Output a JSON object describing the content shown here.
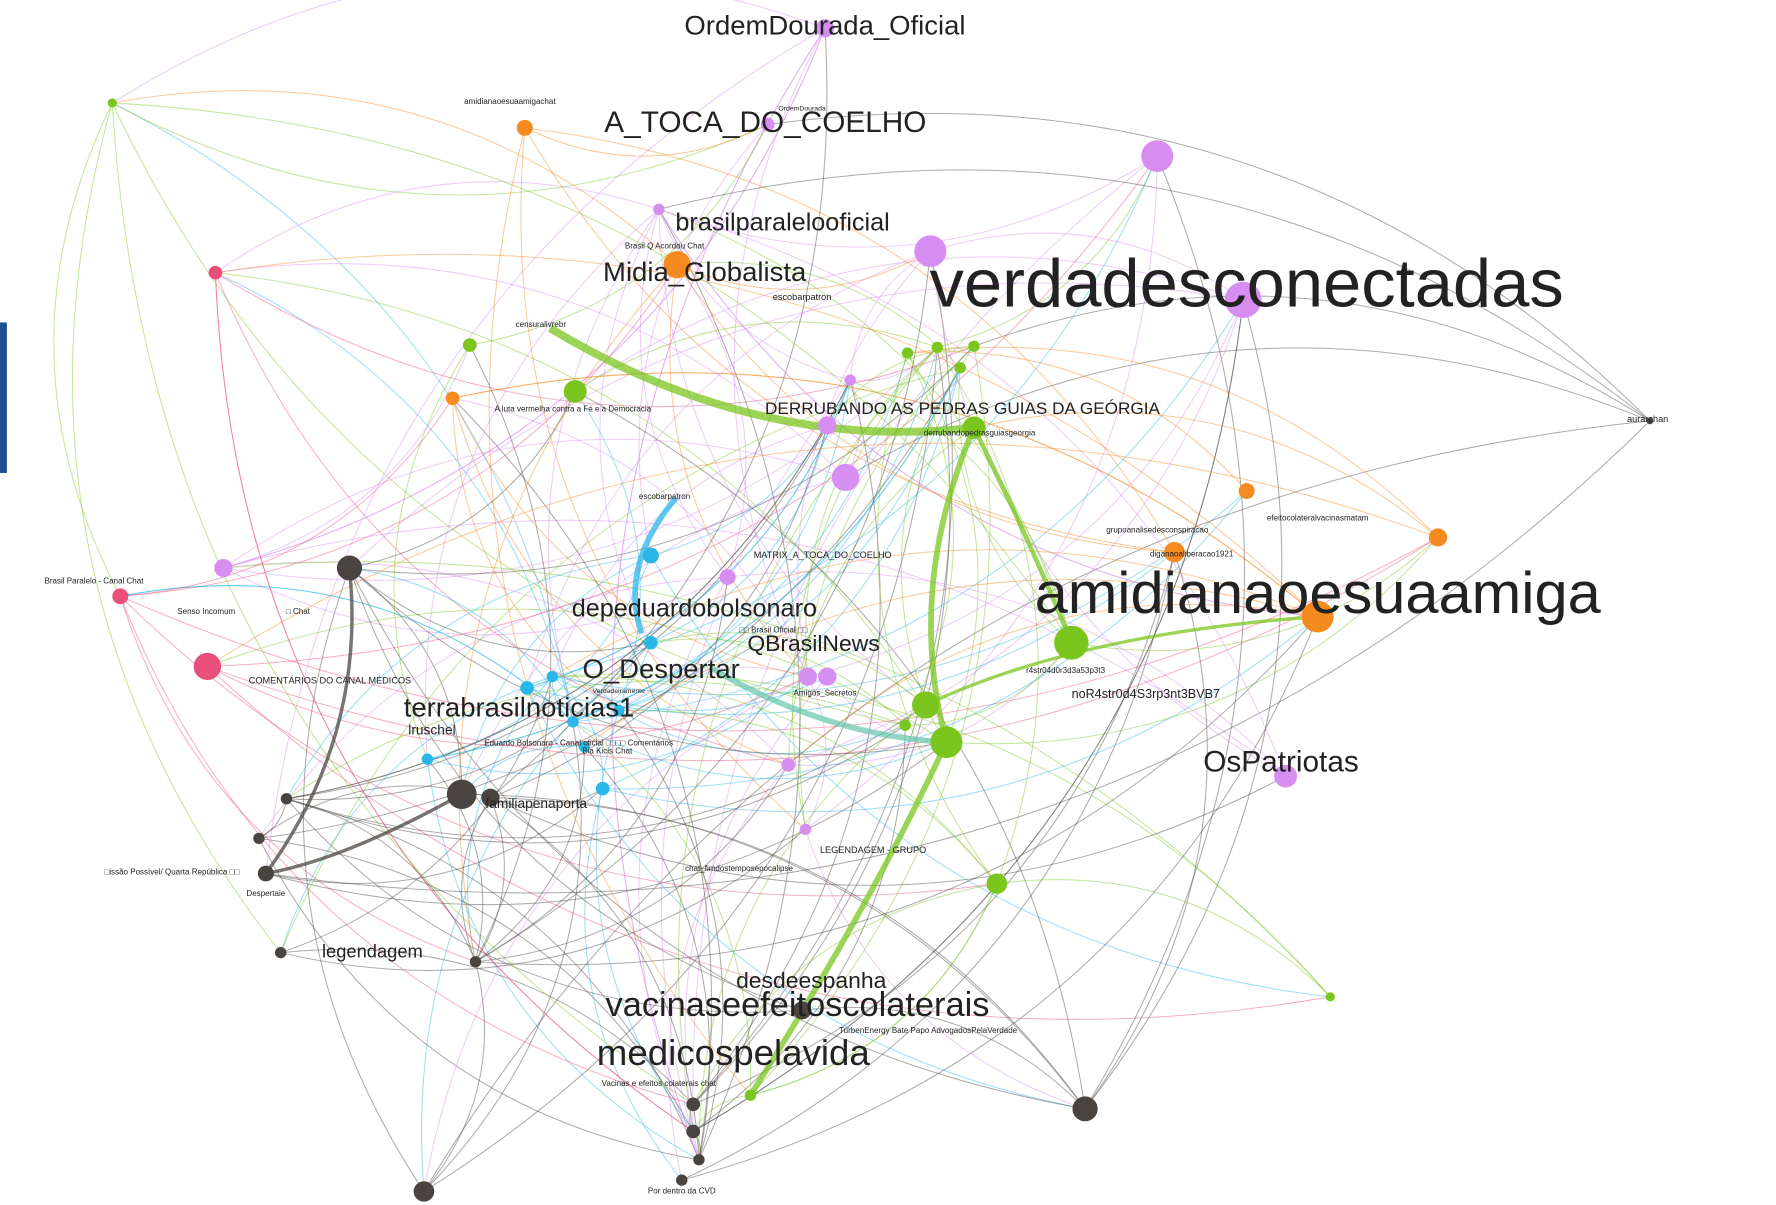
{
  "nodes": [
    {
      "label": "OrdemDourada_Oficial"
    },
    {
      "label": "amidianaoesuaamigachat"
    },
    {
      "label": "OrdemDourada"
    },
    {
      "label": "A_TOCA_DO_COELHO"
    },
    {
      "label": "brasilparalelooficial"
    },
    {
      "label": "Brasil Q Acordou Chat"
    },
    {
      "label": "Midia_Globalista"
    },
    {
      "label": "escobarpatron"
    },
    {
      "label": "verdadesconectadas"
    },
    {
      "label": "censuralivrebr"
    },
    {
      "label": "A luta vermelha contra a Fé e a Democracia"
    },
    {
      "label": "DERRUBANDO AS PEDRAS GUIAS DA GEÓRGIA"
    },
    {
      "label": "derrubandopedrasguiasgeorgia"
    },
    {
      "label": "aurarchan"
    },
    {
      "label": "escobarpatron"
    },
    {
      "label": "efeitocolateralvacinasmatam"
    },
    {
      "label": "grupoanalisedesconspiracao"
    },
    {
      "label": "diganaoaliberacao1921"
    },
    {
      "label": "MATRIX_A_TOCA_DO_COELHO"
    },
    {
      "label": "Brasil Paralelo - Canal Chat"
    },
    {
      "label": "Senso Incomum"
    },
    {
      "label": "□ Chat"
    },
    {
      "label": "depeduardobolsonaro"
    },
    {
      "label": "amidianaoesuaamiga"
    },
    {
      "label": "□□ Brasil Oficial □□"
    },
    {
      "label": "QBrasilNews"
    },
    {
      "label": "O_Despertar"
    },
    {
      "label": "r4str04d0r3d3a53p3t3"
    },
    {
      "label": "COMENTÁRIOS DO CANAL MÉDICOS"
    },
    {
      "label": "Verdadeiramente"
    },
    {
      "label": "Amigos_Secretos"
    },
    {
      "label": "noR4str0d4S3rp3nt3BVB7"
    },
    {
      "label": "terrabrasilnoticias1"
    },
    {
      "label": "lruschel"
    },
    {
      "label": "Eduardo Bolsonaro - Canal oficial □□□□ Comentários"
    },
    {
      "label": "Bia Kicis Chat"
    },
    {
      "label": "OsPatriotas"
    },
    {
      "label": "familiapenaporta"
    },
    {
      "label": "LEGENDAGEM - GRUPO"
    },
    {
      "label": "□issão Possível/ Quarta República □□"
    },
    {
      "label": "chat_fimdostemposepocalipse"
    },
    {
      "label": "Despertaie"
    },
    {
      "label": "legendagem"
    },
    {
      "label": "desdeespanha"
    },
    {
      "label": "vacinaseefeitoscolaterais"
    },
    {
      "label": "TurbenEnergy Bate Papo AdvogadosPelaVerdade"
    },
    {
      "label": "medicospelavida"
    },
    {
      "label": "Vacinas e efeitos colaterais chat"
    },
    {
      "label": "Por dentro da CVD"
    }
  ]
}
